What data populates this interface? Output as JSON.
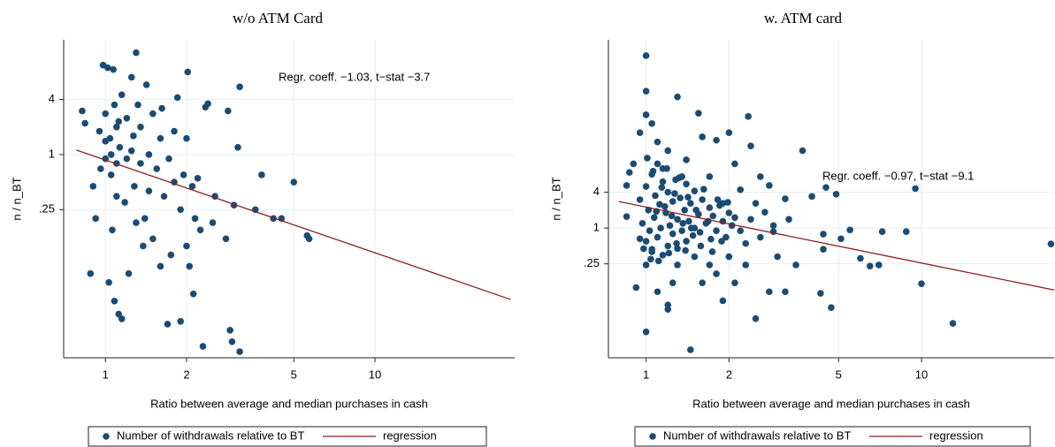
{
  "chart_data": [
    {
      "type": "scatter",
      "title": "w/o ATM Card",
      "xlabel": "Ratio between average and median purchases in cash",
      "ylabel": "n / n_BT",
      "log_x": true,
      "log_y": true,
      "grid": true,
      "legend": "bottom",
      "xlim": [
        0.7,
        33
      ],
      "ylim": [
        0.006,
        18
      ],
      "xticks": [
        1,
        2,
        5,
        10
      ],
      "yticks": [
        4,
        1,
        {
          "value": 0.25,
          "label": ".25"
        }
      ],
      "annotation": "Regr. coeff. −1.03, t−stat −3.7",
      "series": [
        {
          "name": "Number of withdrawals relative to BT",
          "color": "#1b4b73",
          "type": "scatter",
          "x": [
            0.82,
            0.84,
            0.88,
            0.9,
            0.92,
            0.95,
            0.96,
            0.98,
            1.0,
            1.0,
            1.02,
            1.03,
            1.04,
            1.05,
            1.06,
            1.07,
            1.08,
            1.08,
            1.1,
            1.1,
            1.12,
            1.13,
            1.15,
            1.15,
            1.18,
            1.2,
            1.2,
            1.22,
            1.25,
            1.27,
            1.28,
            1.3,
            1.3,
            1.32,
            1.35,
            1.35,
            1.38,
            1.4,
            1.42,
            1.45,
            1.45,
            1.5,
            1.5,
            1.55,
            1.6,
            1.6,
            1.62,
            1.65,
            1.7,
            1.72,
            1.75,
            1.8,
            1.8,
            1.85,
            1.9,
            1.9,
            1.95,
            2.0,
            2.0,
            2.02,
            2.05,
            2.1,
            2.12,
            2.15,
            2.2,
            2.25,
            2.3,
            2.35,
            2.4,
            2.5,
            2.55,
            2.8,
            2.85,
            2.9,
            2.95,
            3.0,
            3.1,
            3.15,
            3.15,
            3.6,
            3.8,
            4.2,
            4.5,
            5.0,
            5.6,
            5.7,
            1.05,
            1.0,
            1.12,
            1.25,
            1.1
          ],
          "values": [
            3.0,
            2.2,
            0.05,
            0.45,
            0.2,
            1.8,
            0.7,
            9.5,
            0.9,
            2.8,
            8.9,
            0.04,
            1.5,
            0.6,
            0.15,
            8.5,
            3.5,
            0.025,
            2.0,
            0.35,
            0.018,
            1.2,
            0.016,
            4.5,
            0.3,
            2.5,
            0.9,
            0.05,
            7.0,
            1.6,
            0.45,
            13,
            0.18,
            3.5,
            2.0,
            0.8,
            0.1,
            0.2,
            5.8,
            1.0,
            0.4,
            2.8,
            0.12,
            0.7,
            0.06,
            1.5,
            3.2,
            0.35,
            0.014,
            0.9,
            0.08,
            1.8,
            0.5,
            4.2,
            0.25,
            0.015,
            0.6,
            0.1,
            1.5,
            8.0,
            0.06,
            0.45,
            0.03,
            0.2,
            0.55,
            0.15,
            0.008,
            3.3,
            3.6,
            0.18,
            0.35,
            0.12,
            3.0,
            0.012,
            0.009,
            0.28,
            1.2,
            5.5,
            0.007,
            0.25,
            0.6,
            0.2,
            0.2,
            0.5,
            0.13,
            0.12,
            1.0,
            1.4,
            2.3,
            1.1,
            0.8
          ]
        },
        {
          "name": "regression",
          "color": "#8b1f1f",
          "type": "line",
          "x": [
            0.78,
            31.9
          ],
          "values": [
            1.12,
            0.026
          ]
        }
      ]
    },
    {
      "type": "scatter",
      "title": "w. ATM card",
      "xlabel": "Ratio between average and median purchases in cash",
      "ylabel": "n / n_BT",
      "log_x": true,
      "log_y": true,
      "grid": true,
      "legend": "bottom",
      "xlim": [
        0.73,
        30.3
      ],
      "ylim": [
        0.0066,
        1460
      ],
      "xticks": [
        1,
        2,
        5,
        10
      ],
      "yticks": [
        4,
        1,
        {
          "value": 0.25,
          "label": ".25"
        }
      ],
      "annotation": "Regr. coeff. −0.97, t−stat −9.1",
      "series": [
        {
          "name": "Number of withdrawals relative to BT",
          "color": "#1b4b73",
          "type": "scatter",
          "x": [
            1.0,
            1.0,
            1.0,
            1.45,
            1.2,
            2.5,
            3.7,
            2.35,
            4.5,
            9.5,
            13,
            29.5,
            10,
            7.2,
            8.8,
            5.5,
            7,
            4.4,
            4.4,
            6,
            6.5,
            5.1,
            3.3,
            2.9,
            3.0,
            3.5,
            4.0,
            4.9,
            3.2,
            4.3,
            4.7,
            2.3,
            2.8,
            0.92,
            0.9,
            0.87,
            0.85,
            0.85,
            1.0,
            1.05,
            1.3,
            1.55,
            1.1,
            1.4,
            1.7,
            2.1,
            2.4,
            2.0,
            1.8,
            1.2,
            1.6,
            0.95,
            1.15,
            1.35,
            2.6,
            2.8,
            3.2,
            2.5,
            2.2,
            1.9,
            2.7,
            1.1,
            1.3,
            1.6,
            1.9,
            1.25,
            1.7,
            2.0,
            1.5,
            1.0,
            1.05,
            0.95,
            1.2,
            1.8,
            2.1,
            0.95,
            0.97,
            1.0,
            1.0,
            1.02,
            1.03,
            1.05,
            1.05,
            1.07,
            1.08,
            1.1,
            1.1,
            1.12,
            1.13,
            1.15,
            1.15,
            1.18,
            1.2,
            1.2,
            1.22,
            1.25,
            1.25,
            1.28,
            1.3,
            1.3,
            1.33,
            1.35,
            1.38,
            1.4,
            1.4,
            1.43,
            1.45,
            1.48,
            1.5,
            1.5,
            1.55,
            1.58,
            1.6,
            1.65,
            1.7,
            1.72,
            1.75,
            1.8,
            1.85,
            1.9,
            1.95,
            2.0,
            2.05,
            2.1,
            2.2,
            0.98,
            1.01,
            1.04,
            1.06,
            1.09,
            1.11,
            1.14,
            1.17,
            1.19,
            1.21,
            1.24,
            1.27,
            1.29,
            1.32,
            1.36,
            1.39,
            1.42,
            1.46,
            1.52,
            1.57,
            1.62,
            1.68,
            1.74,
            1.82,
            1.88,
            1.98,
            2.3,
            2.4,
            2.6,
            2.9
          ],
          "values": [
            790,
            200,
            0.018,
            0.009,
            0.043,
            0.03,
            20,
            75,
            4.8,
            4.6,
            0.025,
            0.54,
            0.116,
            0.87,
            0.87,
            0.93,
            0.24,
            0.44,
            0.79,
            0.31,
            0.23,
            0.66,
            1.4,
            0.87,
            0.33,
            0.24,
            3.4,
            3.7,
            0.085,
            0.08,
            0.046,
            0.24,
            0.085,
            0.1,
            12,
            8.6,
            1.56,
            5.2,
            80,
            57,
            160,
            85,
            28,
            14,
            7.3,
            12,
            24,
            40,
            30,
            20,
            34,
            40,
            10,
            7.3,
            7.3,
            5.2,
            3.1,
            2.6,
            4.4,
            2.6,
            1.85,
            0.085,
            0.24,
            0.12,
            0.06,
            0.12,
            0.24,
            0.33,
            0.33,
            0.24,
            0.44,
            0.66,
            0.051,
            0.17,
            0.12,
            3,
            1.2,
            5,
            0.6,
            2,
            0.9,
            8,
            0.4,
            1.5,
            3.5,
            0.7,
            12,
            2.5,
            1,
            6,
            0.35,
            1.8,
            4,
            0.5,
            1.1,
            2.8,
            0.8,
            6.5,
            1.4,
            0.45,
            3.2,
            0.9,
            2,
            5.5,
            0.6,
            1.3,
            2.6,
            0.75,
            4.2,
            1.0,
            1.7,
            0.5,
            3,
            1.2,
            2.2,
            0.65,
            1.6,
            0.9,
            2.4,
            1.3,
            0.7,
            1.8,
            1.1,
            1.5,
            0.9,
            0.45,
            15,
            0.3,
            9,
            1.9,
            0.28,
            4.8,
            2.3,
            10,
            0.38,
            1.6,
            3.8,
            0.55,
            7,
            1.2,
            0.42,
            3.3,
            1.0,
            2.0,
            0.85,
            4.5,
            1.3,
            0.4,
            3.0,
            0.6,
            2.7,
            0.55,
            1.4,
            0.7,
            1.1
          ]
        },
        {
          "name": "regression",
          "color": "#8b1f1f",
          "type": "line",
          "x": [
            0.796,
            30.3
          ],
          "values": [
            2.79,
            0.091
          ]
        }
      ]
    }
  ]
}
